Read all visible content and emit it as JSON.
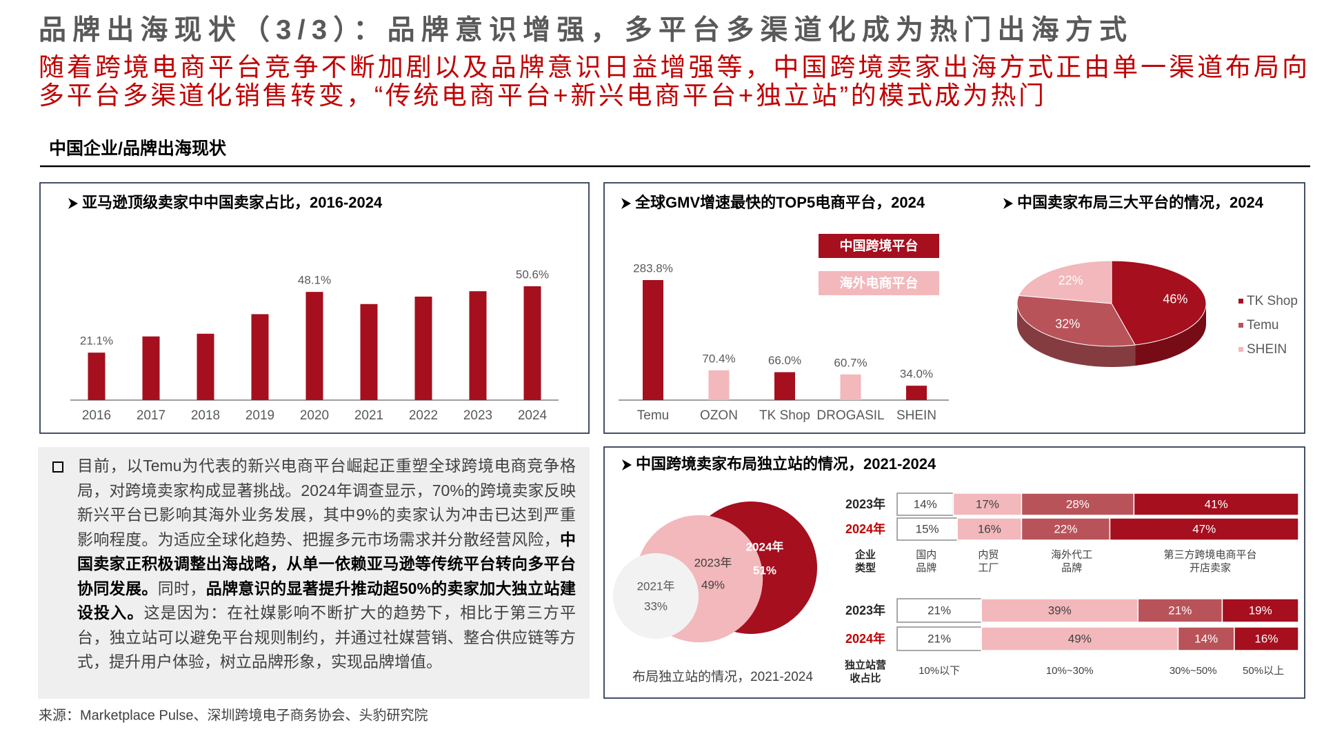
{
  "header": {
    "title": "品牌出海现状（3/3）：品牌意识增强，多平台多渠道化成为热门出海方式",
    "subtitle": [
      "随着跨境电商平台竞争不断加剧以及品牌意识日益增强等，中国跨境卖家出海方式正由单一渠道布局向",
      "多平台多渠道化销售转变，“传统电商平台+新兴电商平台+独立站”的模式成为热门"
    ],
    "section": "中国企业/品牌出海现状"
  },
  "chart_data": [
    {
      "type": "bar",
      "title": "亚马逊顶级卖家中中国卖家占比，2016-2024",
      "categories": [
        "2016",
        "2017",
        "2018",
        "2019",
        "2020",
        "2021",
        "2022",
        "2023",
        "2024"
      ],
      "values": [
        21.1,
        28.3,
        29.5,
        38.2,
        48.1,
        42.7,
        46,
        48.4,
        50.6
      ],
      "value_labels": [
        "21.1%",
        null,
        null,
        null,
        "48.1%",
        null,
        null,
        null,
        "50.6%"
      ],
      "color": "#a50f1e"
    },
    {
      "type": "bar",
      "title": "全球GMV增速最快的TOP5电商平台，2024",
      "categories": [
        "Temu",
        "OZON",
        "TK Shop",
        "DROGASIL",
        "SHEIN"
      ],
      "values": [
        283.8,
        70.4,
        66.0,
        60.7,
        34.0
      ],
      "value_labels": [
        "283.8%",
        "70.4%",
        "66.0%",
        "60.7%",
        "34.0%"
      ],
      "colors": [
        "#a50f1e",
        "#f2b8bb",
        "#a50f1e",
        "#f2b8bb",
        "#a50f1e"
      ],
      "legend": [
        {
          "name": "中国跨境平台",
          "color": "#a50f1e"
        },
        {
          "name": "海外电商平台",
          "color": "#f2b8bb"
        }
      ]
    },
    {
      "type": "pie",
      "title": "中国卖家布局三大平台的情况，2024",
      "categories": [
        "TK Shop",
        "Temu",
        "SHEIN"
      ],
      "values": [
        46,
        32,
        22
      ],
      "value_labels": [
        "46%",
        "32%",
        "22%"
      ],
      "colors": [
        "#a50f1e",
        "#b9535a",
        "#f2b8bb"
      ]
    },
    {
      "type": "circles",
      "title": "中国跨境卖家布局独立站的情况，2021-2024",
      "caption": "布局独立站的情况，2021-2024",
      "categories": [
        "2021年",
        "2023年",
        "2024年"
      ],
      "values": [
        33,
        49,
        51
      ],
      "value_labels": [
        "33%",
        "49%",
        "51%"
      ],
      "colors": [
        "#f2f2f2",
        "#f2b8bb",
        "#a50f1e"
      ]
    },
    {
      "type": "stacked-bar-h",
      "axis_label": "企业类型",
      "categories": [
        "2023年",
        "2024年"
      ],
      "category_colors": [
        "#262626",
        "#c00000"
      ],
      "series": [
        {
          "name": "国内品牌",
          "color": "#ffffff",
          "values": [
            14,
            15
          ],
          "value_labels": [
            "14%",
            "15%"
          ]
        },
        {
          "name": "内贸工厂",
          "color": "#f2b8bb",
          "values": [
            17,
            16
          ],
          "value_labels": [
            "17%",
            "16%"
          ]
        },
        {
          "name": "海外代工品牌",
          "color": "#b9535a",
          "values": [
            28,
            22
          ],
          "value_labels": [
            "28%",
            "22%"
          ]
        },
        {
          "name": "第三方跨境电商平台开店卖家",
          "color": "#a50f1e",
          "values": [
            41,
            47
          ],
          "value_labels": [
            "41%",
            "47%"
          ]
        }
      ]
    },
    {
      "type": "stacked-bar-h",
      "axis_label": "独立站营收占比",
      "categories": [
        "2023年",
        "2024年"
      ],
      "category_colors": [
        "#262626",
        "#c00000"
      ],
      "series": [
        {
          "name": "10%以下",
          "color": "#ffffff",
          "values": [
            21,
            21
          ],
          "value_labels": [
            "21%",
            "21%"
          ]
        },
        {
          "name": "10%~30%",
          "color": "#f2b8bb",
          "values": [
            39,
            49
          ],
          "value_labels": [
            "39%",
            "49%"
          ]
        },
        {
          "name": "30%~50%",
          "color": "#b9535a",
          "values": [
            21,
            14
          ],
          "value_labels": [
            "21%",
            "14%"
          ]
        },
        {
          "name": "50%以上",
          "color": "#a50f1e",
          "values": [
            19,
            16
          ],
          "value_labels": [
            "19%",
            "16%"
          ]
        }
      ]
    }
  ],
  "text_box": {
    "segments": [
      {
        "text": "目前，以Temu为代表的新兴电商平台崛起正重塑全球跨境电商竞争格局，对跨境卖家构成显著挑战。2024年调查显示，70%的跨境卖家反映新兴平台已影响其海外业务发展，其中9%的卖家认为冲击已达到严重影响程度。为适应全球化趋势、把握多元市场需求并分散经营风险，",
        "bold": false
      },
      {
        "text": "中国卖家正积极调整出海战略，从单一依赖亚马逊等传统平台转向多平台协同发展。",
        "bold": true
      },
      {
        "text": "同时，",
        "bold": false
      },
      {
        "text": "品牌意识的显著提升推动超50%的卖家加大独立站建设投入。",
        "bold": true
      },
      {
        "text": "这是因为：在社媒影响不断扩大的趋势下，相比于第三方平台，独立站可以避免平台规则制约，并通过社媒营销、整合供应链等方式，提升用户体验，树立品牌形象，实现品牌增值。",
        "bold": false
      }
    ]
  },
  "source": "来源：Marketplace Pulse、深圳跨境电子商务协会、头豹研究院"
}
